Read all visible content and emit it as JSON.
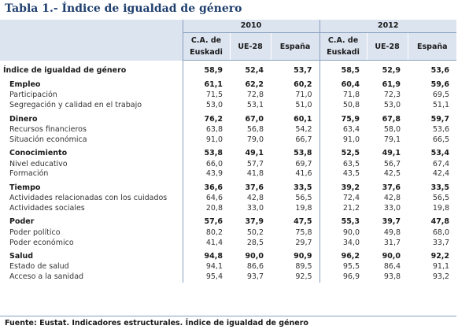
{
  "title": "Tabla 1.- Índice de igualdad de género",
  "years": [
    "2010",
    "2012"
  ],
  "columns": [
    {
      "line1": "C.A. de",
      "line2": "Euskadi"
    },
    {
      "line1": "UE-28",
      "line2": ""
    },
    {
      "line1": "España",
      "line2": ""
    },
    {
      "line1": "C.A. de",
      "line2": "Euskadi"
    },
    {
      "line1": "UE-28",
      "line2": ""
    },
    {
      "line1": "España",
      "line2": ""
    }
  ],
  "index_row": {
    "label": "Índice de igualdad de género",
    "values": [
      "58,9",
      "52,4",
      "53,7",
      "58,5",
      "52,9",
      "53,6"
    ]
  },
  "groups": [
    {
      "label": "Empleo",
      "values": [
        "61,1",
        "62,2",
        "60,2",
        "60,4",
        "61,9",
        "59,6"
      ],
      "items": [
        {
          "label": "Participación",
          "values": [
            "71,5",
            "72,8",
            "71,0",
            "71,8",
            "72,3",
            "69,5"
          ]
        },
        {
          "label": "Segregación y calidad en el trabajo",
          "values": [
            "53,0",
            "53,1",
            "51,0",
            "50,8",
            "53,0",
            "51,1"
          ]
        }
      ]
    },
    {
      "label": "Dinero",
      "values": [
        "76,2",
        "67,0",
        "60,1",
        "75,9",
        "67,8",
        "59,7"
      ],
      "items": [
        {
          "label": "Recursos financieros",
          "values": [
            "63,8",
            "56,8",
            "54,2",
            "63,4",
            "58,0",
            "53,6"
          ]
        },
        {
          "label": "Situación económica",
          "values": [
            "91,0",
            "79,0",
            "66,7",
            "91,0",
            "79,1",
            "66,5"
          ]
        }
      ]
    },
    {
      "label": "Conocimiento",
      "values": [
        "53,8",
        "49,1",
        "53,8",
        "52,5",
        "49,1",
        "53,4"
      ],
      "items": [
        {
          "label": "Nivel educativo",
          "values": [
            "66,0",
            "57,7",
            "69,7",
            "63,5",
            "56,7",
            "67,4"
          ]
        },
        {
          "label": "Formación",
          "values": [
            "43,9",
            "41,8",
            "41,6",
            "43,5",
            "42,5",
            "42,4"
          ]
        }
      ]
    },
    {
      "label": "Tiempo",
      "values": [
        "36,6",
        "37,6",
        "33,5",
        "39,2",
        "37,6",
        "33,5"
      ],
      "items": [
        {
          "label": "Actividades relacionadas con los cuidados",
          "values": [
            "64,6",
            "42,8",
            "56,5",
            "72,4",
            "42,8",
            "56,5"
          ]
        },
        {
          "label": "Actividades sociales",
          "values": [
            "20,8",
            "33,0",
            "19,8",
            "21,2",
            "33,0",
            "19,8"
          ]
        }
      ]
    },
    {
      "label": "Poder",
      "values": [
        "57,6",
        "37,9",
        "47,5",
        "55,3",
        "39,7",
        "47,8"
      ],
      "items": [
        {
          "label": "Poder político",
          "values": [
            "80,2",
            "50,2",
            "75,8",
            "90,0",
            "49,8",
            "68,0"
          ]
        },
        {
          "label": "Poder económico",
          "values": [
            "41,4",
            "28,5",
            "29,7",
            "34,0",
            "31,7",
            "33,7"
          ]
        }
      ]
    },
    {
      "label": "Salud",
      "values": [
        "94,8",
        "90,0",
        "90,9",
        "96,2",
        "90,0",
        "92,2"
      ],
      "items": [
        {
          "label": "Estado de salud",
          "values": [
            "94,1",
            "86,6",
            "89,5",
            "95,5",
            "86,4",
            "91,1"
          ]
        },
        {
          "label": "Acceso a la sanidad",
          "values": [
            "95,4",
            "93,7",
            "92,5",
            "96,9",
            "93,8",
            "93,2"
          ]
        }
      ]
    }
  ],
  "source": "Fuente: Eustat. Indicadores estructurales. Índice de igualdad de género",
  "colors": {
    "title": "#1f3f6e",
    "header_bg": "#dce4f0",
    "rule": "#8aa0bf"
  }
}
